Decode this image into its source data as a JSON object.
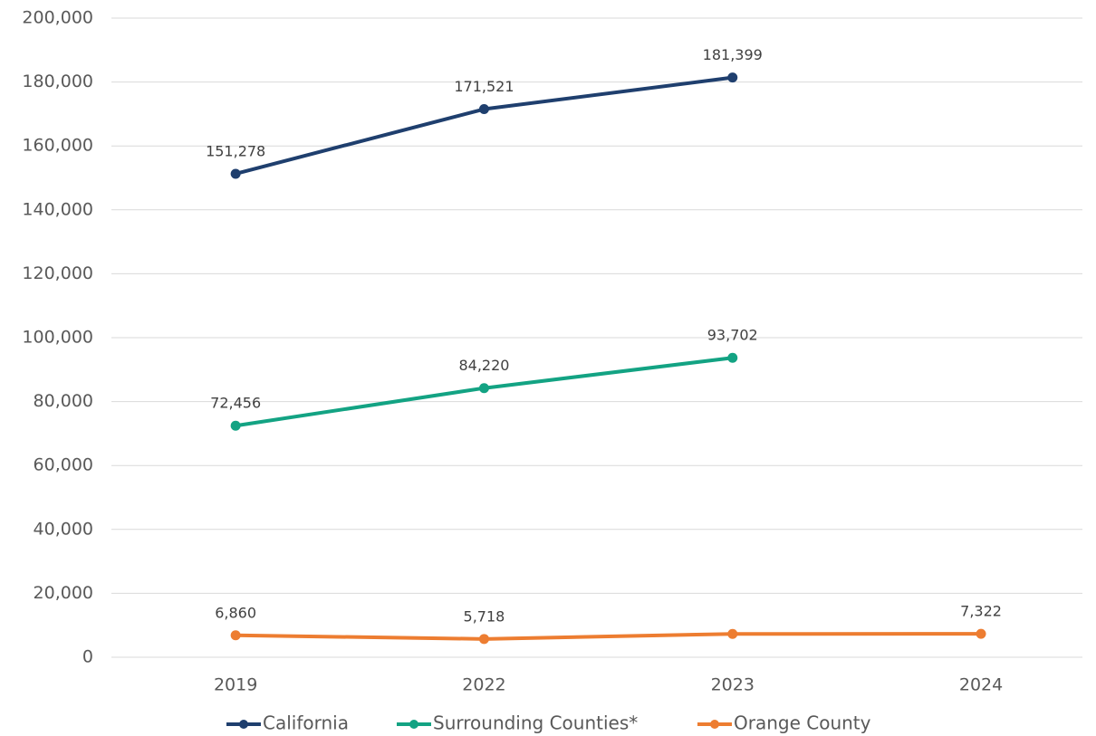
{
  "chart_data": {
    "type": "line",
    "categories": [
      "2019",
      "2022",
      "2023",
      "2024"
    ],
    "series": [
      {
        "name": "California",
        "color": "#1f3f6e",
        "values": [
          151278,
          171521,
          181399,
          null
        ],
        "value_labels": [
          "151,278",
          "171,521",
          "181,399",
          null
        ]
      },
      {
        "name": "Surrounding Counties*",
        "color": "#13a383",
        "values": [
          72456,
          84220,
          93702,
          null
        ],
        "value_labels": [
          "72,456",
          "84,220",
          "93,702",
          null
        ]
      },
      {
        "name": "Orange County",
        "color": "#ed7d31",
        "values": [
          6860,
          5718,
          7300,
          7322
        ],
        "value_labels": [
          "6,860",
          "5,718",
          null,
          "7,322"
        ]
      }
    ],
    "ylim": [
      0,
      200000
    ],
    "yticks": [
      0,
      {
        "value": 20000,
        "label": "20,000"
      },
      {
        "value": 40000,
        "label": "40,000"
      },
      {
        "value": 60000,
        "label": "60,000"
      },
      {
        "value": 80000,
        "label": "80,000"
      },
      {
        "value": 100000,
        "label": "100,000"
      },
      {
        "value": 120000,
        "label": "120,000"
      },
      {
        "value": 140000,
        "label": "140,000"
      },
      {
        "value": 160000,
        "label": "160,000"
      },
      {
        "value": 180000,
        "label": "180,000"
      },
      {
        "value": 200000,
        "label": "200,000"
      }
    ],
    "grid": true,
    "legend": "bottom"
  }
}
